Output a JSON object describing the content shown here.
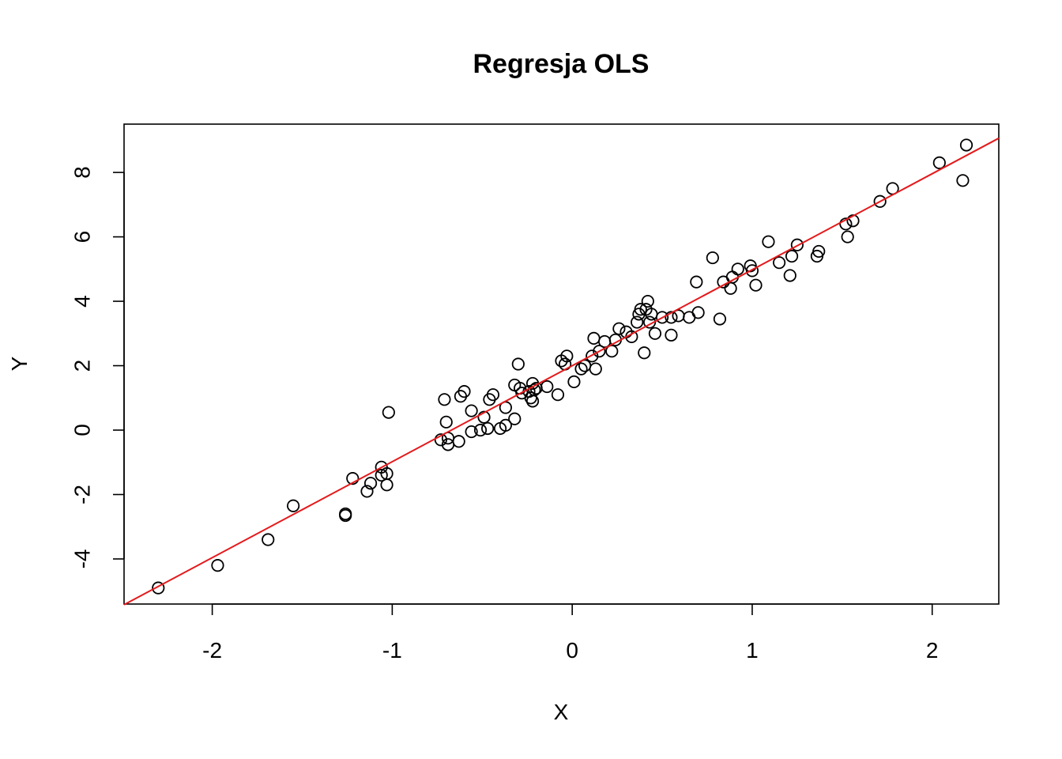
{
  "chart_data": {
    "type": "scatter",
    "title": "Regresja OLS",
    "xlabel": "X",
    "ylabel": "Y",
    "xlim": [
      -2.49,
      2.37
    ],
    "ylim": [
      -5.4,
      9.5
    ],
    "x_ticks": [
      -2,
      -1,
      0,
      1,
      2
    ],
    "y_ticks": [
      -4,
      -2,
      0,
      2,
      4,
      6,
      8
    ],
    "x_tick_labels": [
      "-2",
      "-1",
      "0",
      "1",
      "2"
    ],
    "y_tick_labels": [
      "-4",
      "-2",
      "0",
      "2",
      "4",
      "6",
      "8"
    ],
    "grid": false,
    "legend": "none",
    "fit_line": {
      "intercept": 2.0,
      "slope": 2.98,
      "color": "#e41a1c"
    },
    "point_color": "#000000",
    "points": [
      [
        -2.3,
        -4.9
      ],
      [
        -1.97,
        -4.2
      ],
      [
        -1.69,
        -3.4
      ],
      [
        -1.55,
        -2.35
      ],
      [
        -1.26,
        -2.6
      ],
      [
        -1.26,
        -2.65
      ],
      [
        -1.22,
        -1.5
      ],
      [
        -1.14,
        -1.9
      ],
      [
        -1.12,
        -1.65
      ],
      [
        -1.06,
        -1.15
      ],
      [
        -1.06,
        -1.4
      ],
      [
        -1.03,
        -1.35
      ],
      [
        -1.03,
        -1.7
      ],
      [
        -1.02,
        0.55
      ],
      [
        -0.73,
        -0.3
      ],
      [
        -0.71,
        0.95
      ],
      [
        -0.7,
        0.25
      ],
      [
        -0.69,
        -0.25
      ],
      [
        -0.69,
        -0.45
      ],
      [
        -0.63,
        -0.35
      ],
      [
        -0.62,
        1.05
      ],
      [
        -0.6,
        1.2
      ],
      [
        -0.56,
        -0.05
      ],
      [
        -0.56,
        0.6
      ],
      [
        -0.51,
        0.0
      ],
      [
        -0.49,
        0.4
      ],
      [
        -0.47,
        0.05
      ],
      [
        -0.46,
        0.95
      ],
      [
        -0.44,
        1.1
      ],
      [
        -0.4,
        0.05
      ],
      [
        -0.37,
        0.15
      ],
      [
        -0.37,
        0.7
      ],
      [
        -0.32,
        0.35
      ],
      [
        -0.32,
        1.4
      ],
      [
        -0.3,
        2.05
      ],
      [
        -0.29,
        1.3
      ],
      [
        -0.28,
        1.15
      ],
      [
        -0.24,
        1.2
      ],
      [
        -0.23,
        1.0
      ],
      [
        -0.22,
        1.45
      ],
      [
        -0.22,
        0.9
      ],
      [
        -0.21,
        1.25
      ],
      [
        -0.2,
        1.3
      ],
      [
        -0.14,
        1.35
      ],
      [
        -0.08,
        1.1
      ],
      [
        -0.06,
        2.15
      ],
      [
        -0.04,
        2.05
      ],
      [
        -0.03,
        2.3
      ],
      [
        0.01,
        1.5
      ],
      [
        0.05,
        1.9
      ],
      [
        0.07,
        2.0
      ],
      [
        0.11,
        2.3
      ],
      [
        0.12,
        2.85
      ],
      [
        0.13,
        1.9
      ],
      [
        0.15,
        2.45
      ],
      [
        0.18,
        2.75
      ],
      [
        0.22,
        2.45
      ],
      [
        0.24,
        2.8
      ],
      [
        0.26,
        3.15
      ],
      [
        0.3,
        3.05
      ],
      [
        0.33,
        2.9
      ],
      [
        0.36,
        3.35
      ],
      [
        0.37,
        3.6
      ],
      [
        0.38,
        3.75
      ],
      [
        0.4,
        2.4
      ],
      [
        0.41,
        3.75
      ],
      [
        0.42,
        4.0
      ],
      [
        0.43,
        3.35
      ],
      [
        0.44,
        3.6
      ],
      [
        0.46,
        3.0
      ],
      [
        0.5,
        3.5
      ],
      [
        0.55,
        3.5
      ],
      [
        0.55,
        2.95
      ],
      [
        0.59,
        3.55
      ],
      [
        0.65,
        3.5
      ],
      [
        0.69,
        4.6
      ],
      [
        0.7,
        3.65
      ],
      [
        0.78,
        5.35
      ],
      [
        0.82,
        3.45
      ],
      [
        0.84,
        4.6
      ],
      [
        0.88,
        4.4
      ],
      [
        0.89,
        4.75
      ],
      [
        0.92,
        5.0
      ],
      [
        0.99,
        5.1
      ],
      [
        1.0,
        4.95
      ],
      [
        1.02,
        4.5
      ],
      [
        1.09,
        5.85
      ],
      [
        1.15,
        5.2
      ],
      [
        1.21,
        4.8
      ],
      [
        1.22,
        5.4
      ],
      [
        1.25,
        5.75
      ],
      [
        1.36,
        5.4
      ],
      [
        1.37,
        5.55
      ],
      [
        1.52,
        6.4
      ],
      [
        1.53,
        6.0
      ],
      [
        1.56,
        6.5
      ],
      [
        1.71,
        7.1
      ],
      [
        1.78,
        7.5
      ],
      [
        2.04,
        8.3
      ],
      [
        2.17,
        7.75
      ],
      [
        2.19,
        8.85
      ]
    ]
  }
}
